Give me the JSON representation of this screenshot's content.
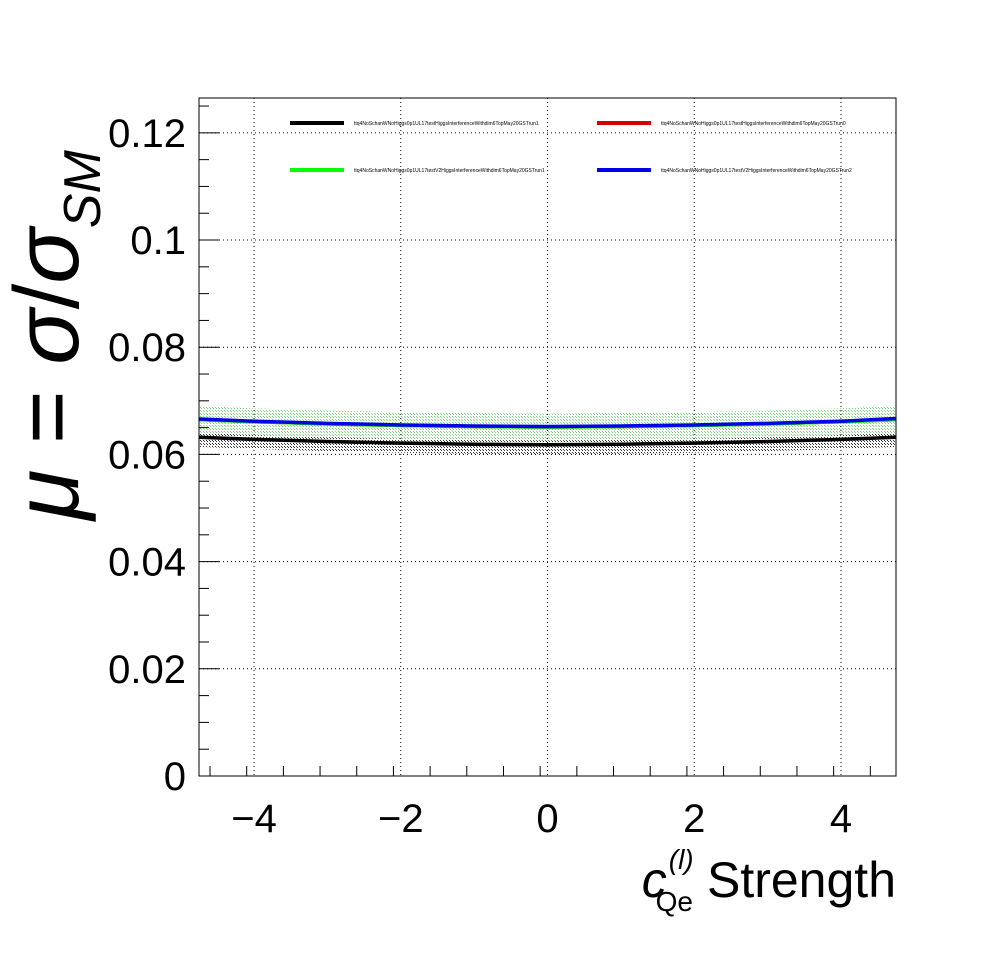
{
  "chart_data": {
    "type": "line",
    "xlim": [
      -4.75,
      4.75
    ],
    "ylim": [
      0,
      0.1265
    ],
    "x_ticks": [
      -4,
      -2,
      0,
      2,
      4
    ],
    "x_tick_labels": [
      "−4",
      "−2",
      "0",
      "2",
      "4"
    ],
    "y_ticks": [
      0,
      0.02,
      0.04,
      0.06,
      0.08,
      0.1,
      0.12
    ],
    "y_tick_labels": [
      "0",
      "0.02",
      "0.04",
      "0.06",
      "0.08",
      "0.1",
      "0.12"
    ],
    "grid": true,
    "xlabel": {
      "symbol": "c",
      "superscript": "(l)",
      "subscript": "Qe",
      "suffix": "Strength"
    },
    "ylabel": {
      "mu": "μ",
      "eq": " = ",
      "sigma1": "σ",
      "slash": "/",
      "sigma2": "σ",
      "sub": "SM"
    },
    "legend_position": "top",
    "series": [
      {
        "name": "ttq4NoSchanWNoHiggs0p1UL17testHiggsInterferenceWithdim6TopMay20GSTrun1",
        "color": "#000000",
        "x": [
          -4.75,
          -4,
          -3,
          -2,
          -1,
          0,
          1,
          2,
          3,
          4,
          4.75
        ],
        "y": [
          0.0632,
          0.0628,
          0.0624,
          0.0621,
          0.0619,
          0.0618,
          0.0619,
          0.0621,
          0.0624,
          0.0628,
          0.0632
        ],
        "band": [
          0.0018,
          0.0018,
          0.0018,
          0.0018,
          0.0018,
          0.0018,
          0.0018,
          0.0018,
          0.0018,
          0.0018,
          0.0018
        ],
        "band_color": "#333333"
      },
      {
        "name": "ttq4NoSchanWNoHiggs0p1UL17testHiggsInterferenceWithdim6TopMay20GSTrun0",
        "color": "#d40000",
        "x": [
          -4.75,
          -4,
          -3,
          -2,
          -1,
          0,
          1,
          2,
          3,
          4,
          4.75
        ],
        "y": [
          0.0665,
          0.0661,
          0.0657,
          0.0654,
          0.0652,
          0.0651,
          0.0652,
          0.0654,
          0.0657,
          0.0661,
          0.0665
        ],
        "band": [],
        "band_color": ""
      },
      {
        "name": "ttq4NoSchanWNoHiggs0p1UL17testV2HiggsInterferenceWithdim6TopMay20GSTrun1",
        "color": "#00ff00",
        "x": [
          -4.75,
          -4,
          -3,
          -2,
          -1,
          0,
          1,
          2,
          3,
          4,
          4.75
        ],
        "y": [
          0.0665,
          0.0661,
          0.0657,
          0.0654,
          0.0652,
          0.0651,
          0.0652,
          0.0654,
          0.0657,
          0.0661,
          0.0665
        ],
        "band": [
          0.0025,
          0.0025,
          0.0025,
          0.0025,
          0.0025,
          0.0025,
          0.0025,
          0.0025,
          0.0025,
          0.0025,
          0.0025
        ],
        "band_color": "#7ed67e"
      },
      {
        "name": "ttq4NoSchanWNoHiggs0p1UL17testV2HiggsInterferenceWithdim6TopMay20GSTrun2",
        "color": "#0000e6",
        "x": [
          -4.75,
          -4,
          -3,
          -2,
          -1,
          0,
          1,
          2,
          3,
          4,
          4.75
        ],
        "y": [
          0.0666,
          0.0662,
          0.0658,
          0.0655,
          0.0653,
          0.0652,
          0.0653,
          0.0655,
          0.0658,
          0.0662,
          0.0667
        ],
        "band": [],
        "band_color": ""
      }
    ]
  }
}
